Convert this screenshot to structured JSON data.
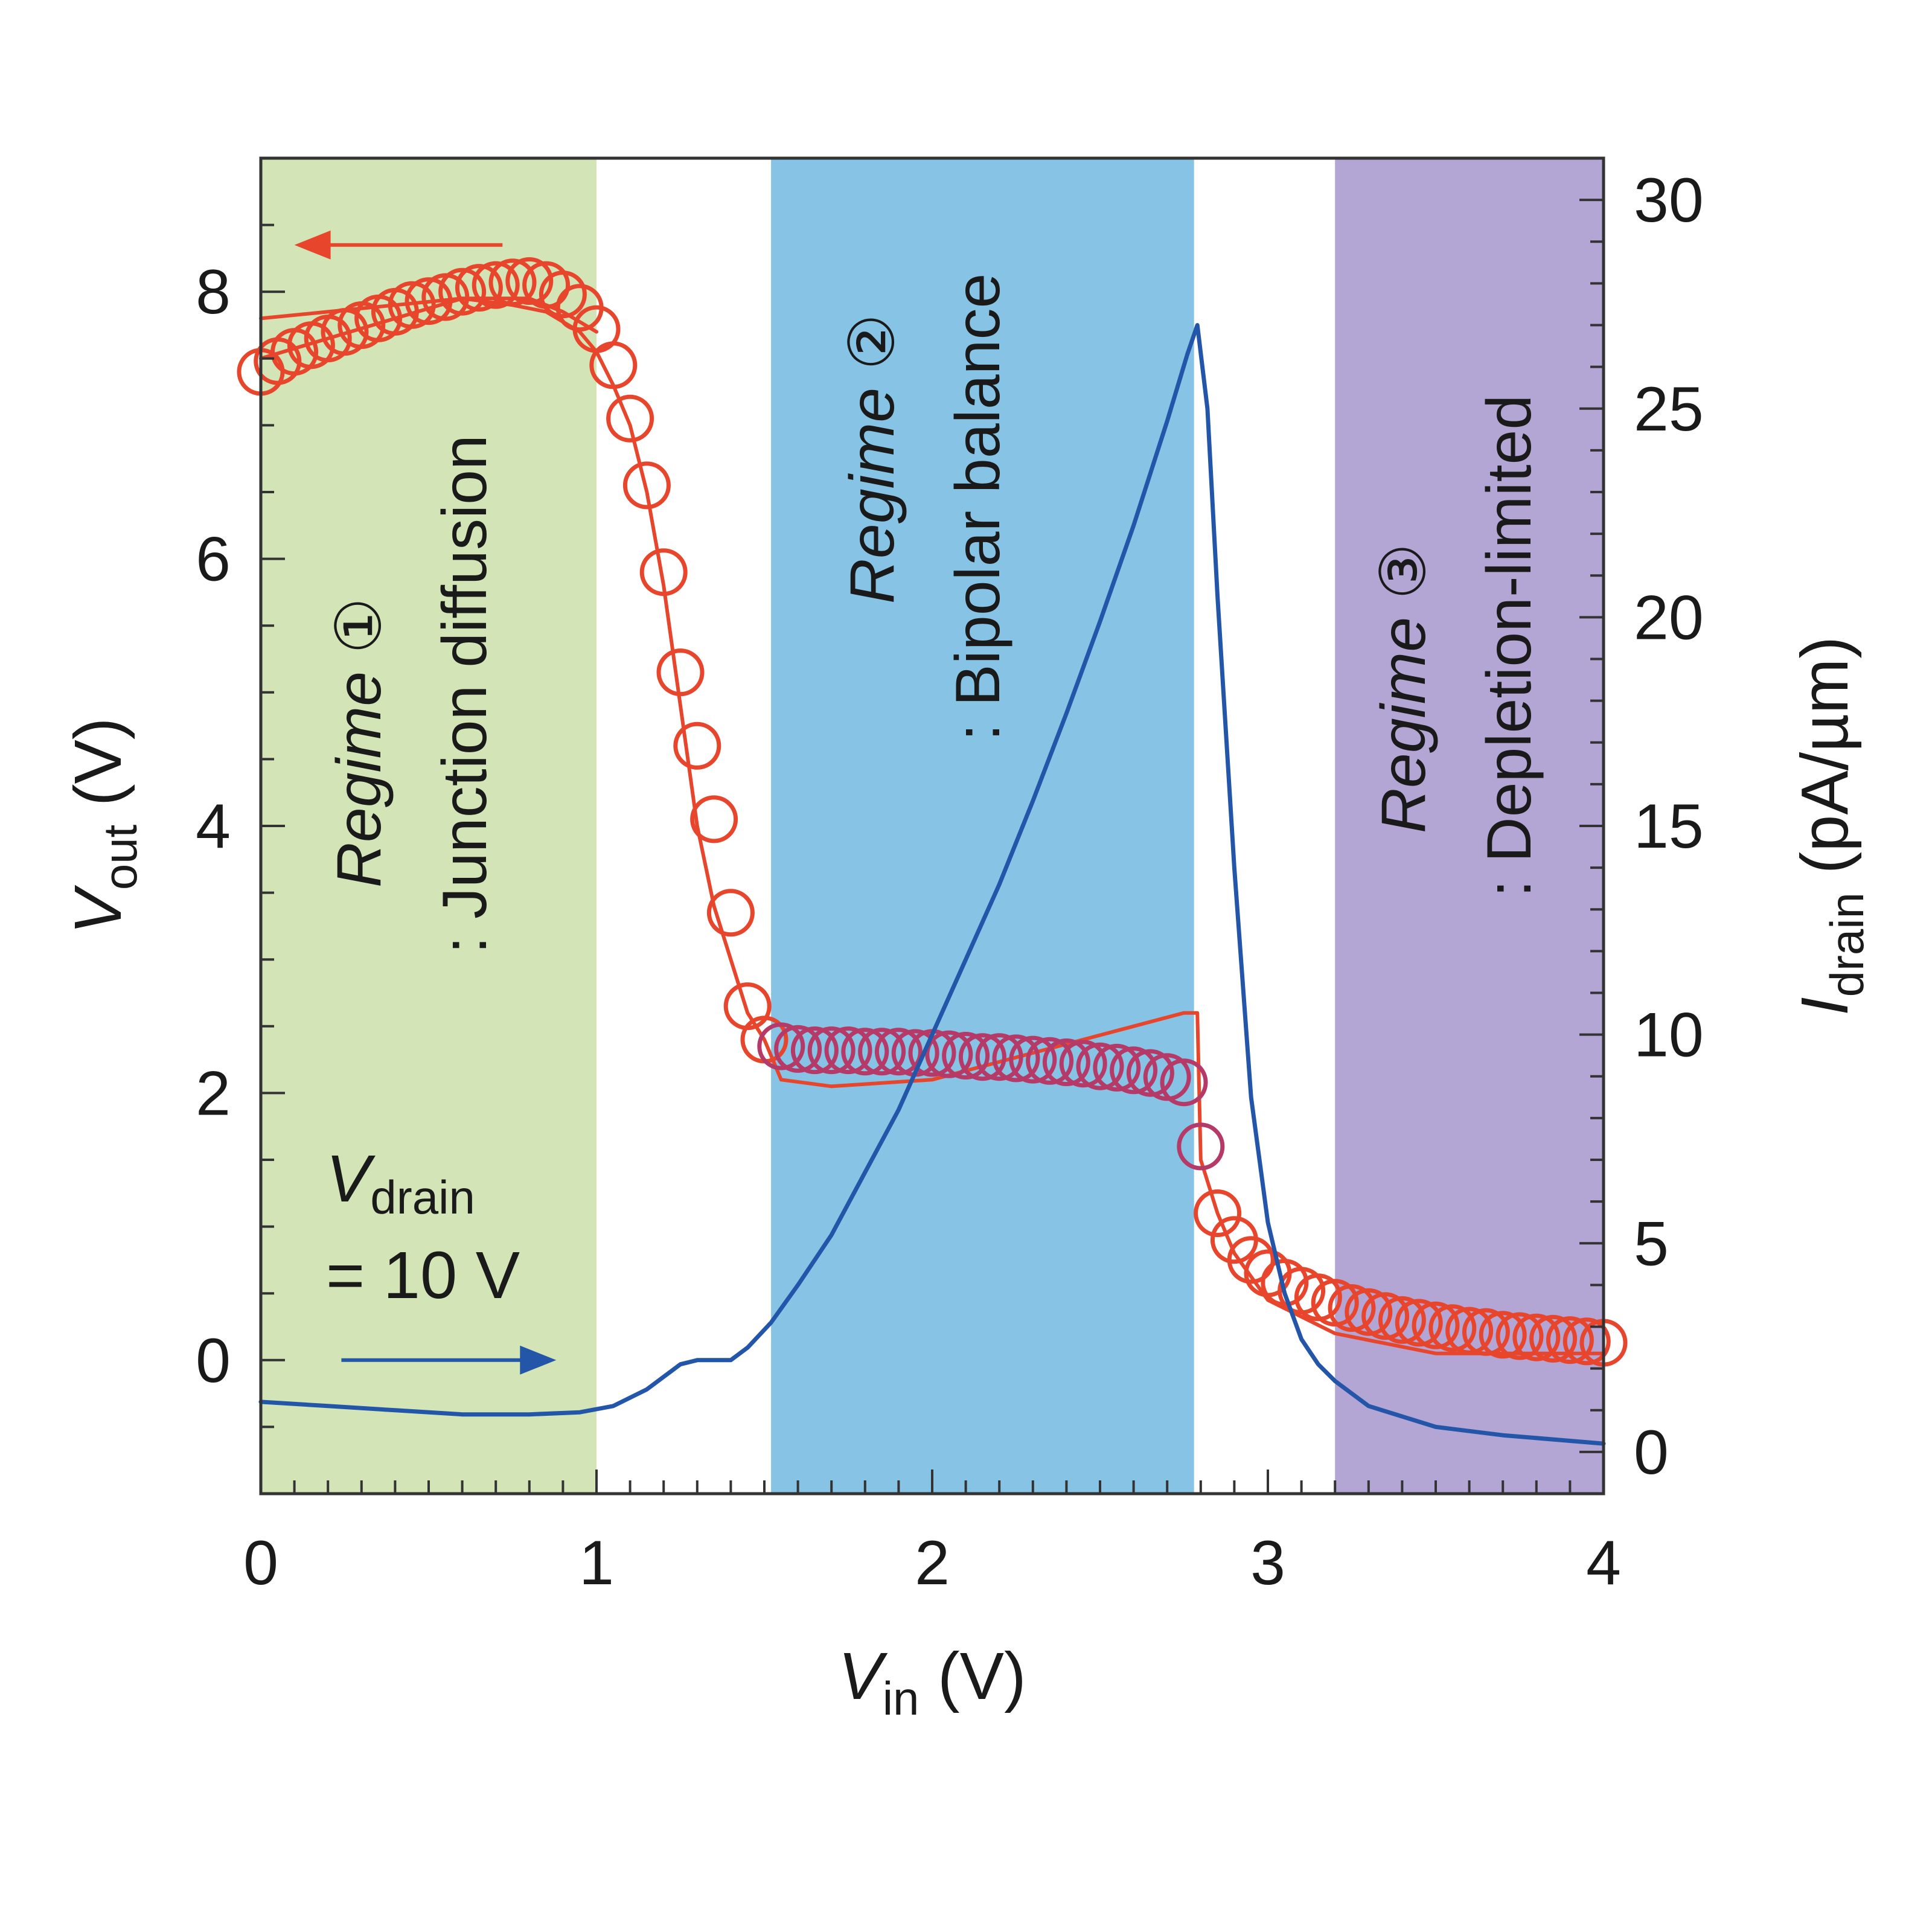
{
  "chart_data": {
    "type": "line",
    "title": "",
    "x_axis": {
      "label_main": "V",
      "label_sub": "in",
      "label_unit": " (V)",
      "range": [
        0,
        4
      ],
      "ticks": [
        "0",
        "1",
        "2",
        "3",
        "4"
      ],
      "tick_values": [
        0,
        1,
        2,
        3,
        4
      ]
    },
    "y_left": {
      "label_main": "V",
      "label_sub": "out",
      "label_unit": " (V)",
      "range": [
        -1,
        9
      ],
      "ticks": [
        "0",
        "2",
        "4",
        "6",
        "8"
      ],
      "tick_values": [
        0,
        2,
        4,
        6,
        8
      ]
    },
    "y_right": {
      "label_main": "I",
      "label_sub": "drain",
      "label_unit": " (pA/µm)",
      "range": [
        -1,
        31
      ],
      "ticks": [
        "0",
        "5",
        "10",
        "15",
        "20",
        "25",
        "30"
      ],
      "tick_values": [
        0,
        5,
        10,
        15,
        20,
        25,
        30
      ]
    },
    "regimes": [
      {
        "x_start": 0.0,
        "x_end": 1.0,
        "color": "#d3e4b7",
        "name": "Regime",
        "number": "①",
        "desc": ": Junction diffusion"
      },
      {
        "x_start": 1.52,
        "x_end": 2.78,
        "color": "#86c3e4",
        "name": "Regime",
        "number": "②",
        "desc": ": Bipolar balance"
      },
      {
        "x_start": 3.2,
        "x_end": 4.0,
        "color": "#b3a5d4",
        "name": "Regime",
        "number": "③",
        "desc": ": Depletion-limited"
      }
    ],
    "annotation": {
      "line1_main": "V",
      "line1_sub": "drain",
      "line2": "= 10 V"
    },
    "arrows": [
      {
        "axis": "left",
        "direction": "left",
        "color": "#e8462c",
        "x_from": 0.72,
        "x_to": 0.1,
        "y": 8.35
      },
      {
        "axis": "right",
        "direction": "right",
        "color": "#2356a8",
        "x_from": 0.24,
        "x_to": 0.88,
        "y": 2.2
      }
    ],
    "series": [
      {
        "name": "Vout measured forward (solid)",
        "axis": "left",
        "style": "line",
        "color": "#e8462c",
        "x": [
          0,
          0.2,
          0.4,
          0.6,
          0.75,
          0.85,
          0.95,
          1.0,
          1.05,
          1.1,
          1.15,
          1.2,
          1.25,
          1.3,
          1.35,
          1.4,
          1.45,
          1.5,
          1.55,
          1.7,
          2.0,
          2.3,
          2.6,
          2.75,
          2.79,
          2.8,
          2.85,
          2.9,
          3.0,
          3.2,
          3.5,
          4.0
        ],
        "y": [
          7.8,
          7.85,
          7.9,
          7.95,
          7.9,
          7.85,
          7.7,
          7.55,
          7.3,
          7.0,
          6.5,
          5.8,
          4.9,
          4.0,
          3.4,
          3.0,
          2.6,
          2.4,
          2.1,
          2.05,
          2.1,
          2.3,
          2.5,
          2.6,
          2.6,
          1.5,
          1.1,
          0.8,
          0.45,
          0.2,
          0.05,
          0.05
        ]
      },
      {
        "name": "Vout measured reverse (solid)",
        "axis": "left",
        "style": "line",
        "color": "#e8462c",
        "x": [
          0,
          0.2,
          0.4,
          0.6,
          0.8,
          0.9,
          1.0
        ],
        "y": [
          7.5,
          7.65,
          7.8,
          7.95,
          7.95,
          7.85,
          7.7
        ]
      },
      {
        "name": "Vout simulated (circles)",
        "axis": "left",
        "style": "markers",
        "color": "#e8462c",
        "color_mid": "#b53a67",
        "x": [
          0.0,
          0.05,
          0.1,
          0.15,
          0.2,
          0.25,
          0.3,
          0.35,
          0.4,
          0.45,
          0.5,
          0.55,
          0.6,
          0.65,
          0.7,
          0.75,
          0.8,
          0.85,
          0.9,
          0.95,
          1.0,
          1.05,
          1.1,
          1.15,
          1.2,
          1.25,
          1.3,
          1.35,
          1.4,
          1.45,
          1.5,
          1.55,
          1.6,
          1.65,
          1.7,
          1.75,
          1.8,
          1.85,
          1.9,
          1.95,
          2.0,
          2.05,
          2.1,
          2.15,
          2.2,
          2.25,
          2.3,
          2.35,
          2.4,
          2.45,
          2.5,
          2.55,
          2.6,
          2.65,
          2.7,
          2.75,
          2.8,
          2.85,
          2.9,
          2.95,
          3.0,
          3.05,
          3.1,
          3.15,
          3.2,
          3.25,
          3.3,
          3.35,
          3.4,
          3.45,
          3.5,
          3.55,
          3.6,
          3.65,
          3.7,
          3.75,
          3.8,
          3.85,
          3.9,
          3.95,
          4.0
        ],
        "y": [
          7.4,
          7.48,
          7.55,
          7.6,
          7.65,
          7.7,
          7.75,
          7.8,
          7.85,
          7.9,
          7.93,
          7.96,
          8.0,
          8.03,
          8.05,
          8.07,
          8.08,
          8.05,
          7.98,
          7.88,
          7.72,
          7.45,
          7.05,
          6.55,
          5.9,
          5.15,
          4.6,
          4.05,
          3.35,
          2.65,
          2.4,
          2.35,
          2.33,
          2.32,
          2.32,
          2.32,
          2.31,
          2.31,
          2.31,
          2.3,
          2.3,
          2.29,
          2.28,
          2.27,
          2.27,
          2.26,
          2.25,
          2.24,
          2.23,
          2.22,
          2.2,
          2.19,
          2.17,
          2.15,
          2.12,
          2.08,
          1.6,
          1.1,
          0.9,
          0.75,
          0.65,
          0.58,
          0.52,
          0.47,
          0.43,
          0.39,
          0.36,
          0.33,
          0.3,
          0.28,
          0.26,
          0.24,
          0.22,
          0.21,
          0.19,
          0.18,
          0.17,
          0.16,
          0.15,
          0.14,
          0.13
        ]
      },
      {
        "name": "Idrain",
        "axis": "right",
        "style": "line",
        "color": "#2356a8",
        "x": [
          0,
          0.2,
          0.4,
          0.6,
          0.8,
          0.95,
          1.05,
          1.15,
          1.25,
          1.3,
          1.4,
          1.45,
          1.52,
          1.6,
          1.7,
          1.8,
          1.9,
          2.0,
          2.1,
          2.2,
          2.3,
          2.4,
          2.5,
          2.6,
          2.7,
          2.76,
          2.79,
          2.82,
          2.85,
          2.9,
          2.95,
          3.0,
          3.05,
          3.1,
          3.15,
          3.2,
          3.3,
          3.5,
          3.7,
          4.0
        ],
        "y": [
          1.2,
          1.1,
          1.0,
          0.9,
          0.9,
          0.95,
          1.1,
          1.5,
          2.1,
          2.2,
          2.2,
          2.5,
          3.1,
          4.0,
          5.2,
          6.7,
          8.2,
          10.0,
          11.8,
          13.6,
          15.6,
          17.7,
          19.9,
          22.2,
          24.7,
          26.3,
          27.0,
          25.0,
          20.5,
          14.0,
          8.5,
          5.5,
          3.8,
          2.7,
          2.1,
          1.7,
          1.1,
          0.6,
          0.4,
          0.2
        ]
      }
    ]
  }
}
